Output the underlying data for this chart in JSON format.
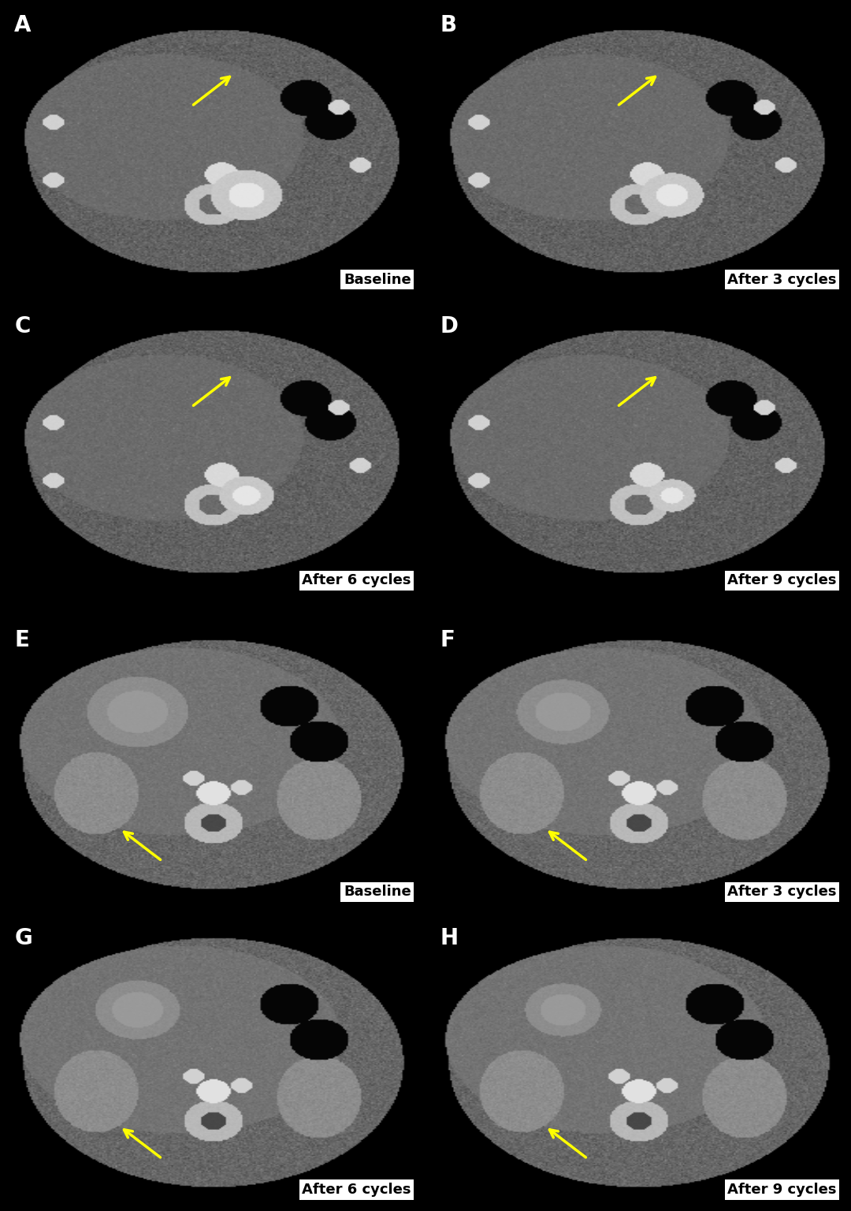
{
  "panels": [
    {
      "label": "A",
      "caption": "Baseline",
      "row": 0,
      "col": 0,
      "group": 0,
      "label_color": "white"
    },
    {
      "label": "B",
      "caption": "After 3 cycles",
      "row": 0,
      "col": 1,
      "group": 0,
      "label_color": "white"
    },
    {
      "label": "C",
      "caption": "After 6 cycles",
      "row": 1,
      "col": 0,
      "group": 0,
      "label_color": "white"
    },
    {
      "label": "D",
      "caption": "After 9 cycles",
      "row": 1,
      "col": 1,
      "group": 0,
      "label_color": "white"
    },
    {
      "label": "E",
      "caption": "Baseline",
      "row": 2,
      "col": 0,
      "group": 1,
      "label_color": "white"
    },
    {
      "label": "F",
      "caption": "After 3 cycles",
      "row": 2,
      "col": 1,
      "group": 1,
      "label_color": "white"
    },
    {
      "label": "G",
      "caption": "After 6 cycles",
      "row": 3,
      "col": 0,
      "group": 1,
      "label_color": "white"
    },
    {
      "label": "H",
      "caption": "After 9 cycles",
      "row": 3,
      "col": 1,
      "group": 1,
      "label_color": "white"
    }
  ],
  "background_color": "#000000",
  "label_fontsize": 20,
  "caption_fontsize": 13,
  "arrow_color": "#FFFF00",
  "caption_bg": "white",
  "caption_text_color": "black"
}
